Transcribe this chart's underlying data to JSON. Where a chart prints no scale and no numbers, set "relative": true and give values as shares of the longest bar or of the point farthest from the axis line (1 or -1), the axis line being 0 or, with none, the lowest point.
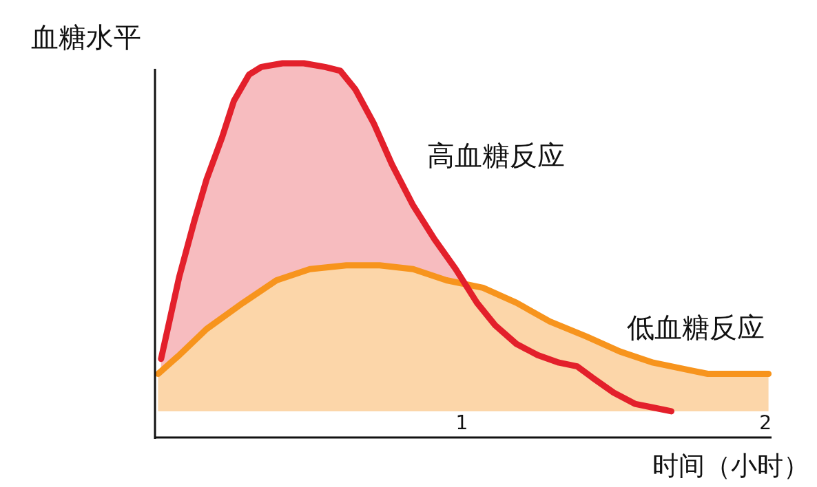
{
  "chart_data": {
    "type": "area",
    "relative": true,
    "ylabel": "血糖水平",
    "xlabel": "时间（小时）",
    "xlim": [
      -0.01,
      2.02
    ],
    "xticks": [
      1,
      2
    ],
    "grid": false,
    "series": [
      {
        "name": "高血糖反应",
        "color": "#e3202b",
        "x": [
          0.01,
          0.04,
          0.07,
          0.12,
          0.16,
          0.21,
          0.25,
          0.3,
          0.34,
          0.41,
          0.48,
          0.55,
          0.6,
          0.65,
          0.71,
          0.77,
          0.84,
          0.91,
          0.98,
          1.05,
          1.11,
          1.18,
          1.25,
          1.32,
          1.38,
          1.43,
          1.5,
          1.57,
          1.63,
          1.69
        ],
        "values": [
          0.21,
          0.32,
          0.43,
          0.58,
          0.69,
          0.8,
          0.9,
          0.97,
          0.99,
          1.0,
          1.0,
          0.99,
          0.98,
          0.93,
          0.84,
          0.73,
          0.62,
          0.53,
          0.45,
          0.36,
          0.3,
          0.25,
          0.22,
          0.2,
          0.19,
          0.16,
          0.12,
          0.09,
          0.08,
          0.07
        ]
      },
      {
        "name": "低血糖反应",
        "color": "#f7941d",
        "x": [
          0.0,
          0.07,
          0.16,
          0.28,
          0.39,
          0.5,
          0.62,
          0.73,
          0.84,
          0.95,
          1.07,
          1.18,
          1.29,
          1.41,
          1.52,
          1.63,
          1.75,
          1.81,
          1.9,
          2.01
        ],
        "values": [
          0.17,
          0.22,
          0.29,
          0.36,
          0.42,
          0.45,
          0.46,
          0.46,
          0.45,
          0.42,
          0.4,
          0.36,
          0.31,
          0.27,
          0.23,
          0.2,
          0.18,
          0.17,
          0.17,
          0.17
        ]
      }
    ]
  }
}
